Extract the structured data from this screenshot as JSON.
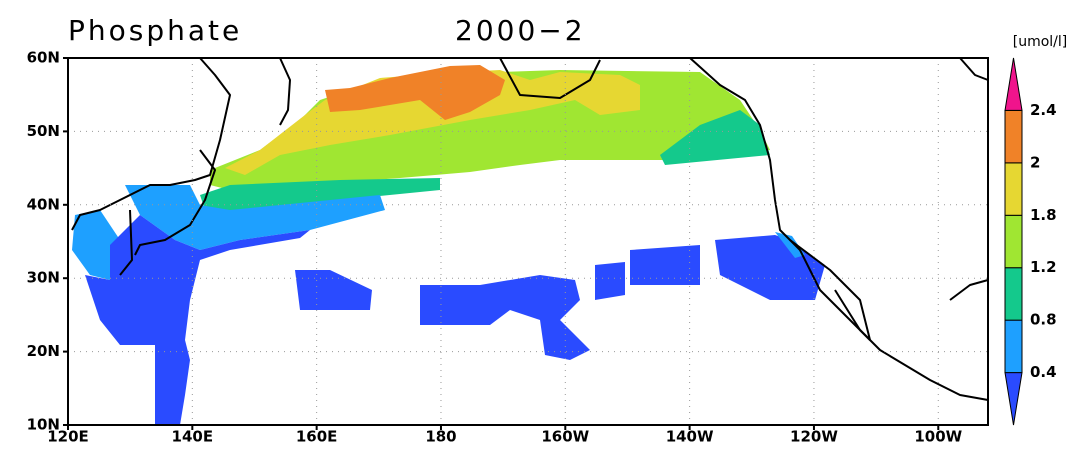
{
  "title": {
    "variable": "Phosphate",
    "period": "2000−2"
  },
  "map": {
    "lonlim": [
      120,
      268
    ],
    "latlim": [
      10,
      60
    ],
    "lon_ticks": [
      {
        "value": 120,
        "label": "120E"
      },
      {
        "value": 140,
        "label": "140E"
      },
      {
        "value": 160,
        "label": "160E"
      },
      {
        "value": 180,
        "label": "180"
      },
      {
        "value": 200,
        "label": "160W"
      },
      {
        "value": 220,
        "label": "140W"
      },
      {
        "value": 240,
        "label": "120W"
      },
      {
        "value": 260,
        "label": "100W"
      }
    ],
    "lat_ticks": [
      {
        "value": 10,
        "label": "10N"
      },
      {
        "value": 20,
        "label": "20N"
      },
      {
        "value": 30,
        "label": "30N"
      },
      {
        "value": 40,
        "label": "40N"
      },
      {
        "value": 50,
        "label": "50N"
      },
      {
        "value": 60,
        "label": "60N"
      }
    ],
    "grid": true
  },
  "colorbar": {
    "unit": "[umol/l]",
    "levels": [
      0.4,
      0.8,
      1.2,
      1.8,
      2,
      2.4
    ],
    "colors": [
      "#2a4bff",
      "#1ea0ff",
      "#14c98c",
      "#a0e632",
      "#e6d732",
      "#f08228",
      "#f0148c"
    ]
  }
}
